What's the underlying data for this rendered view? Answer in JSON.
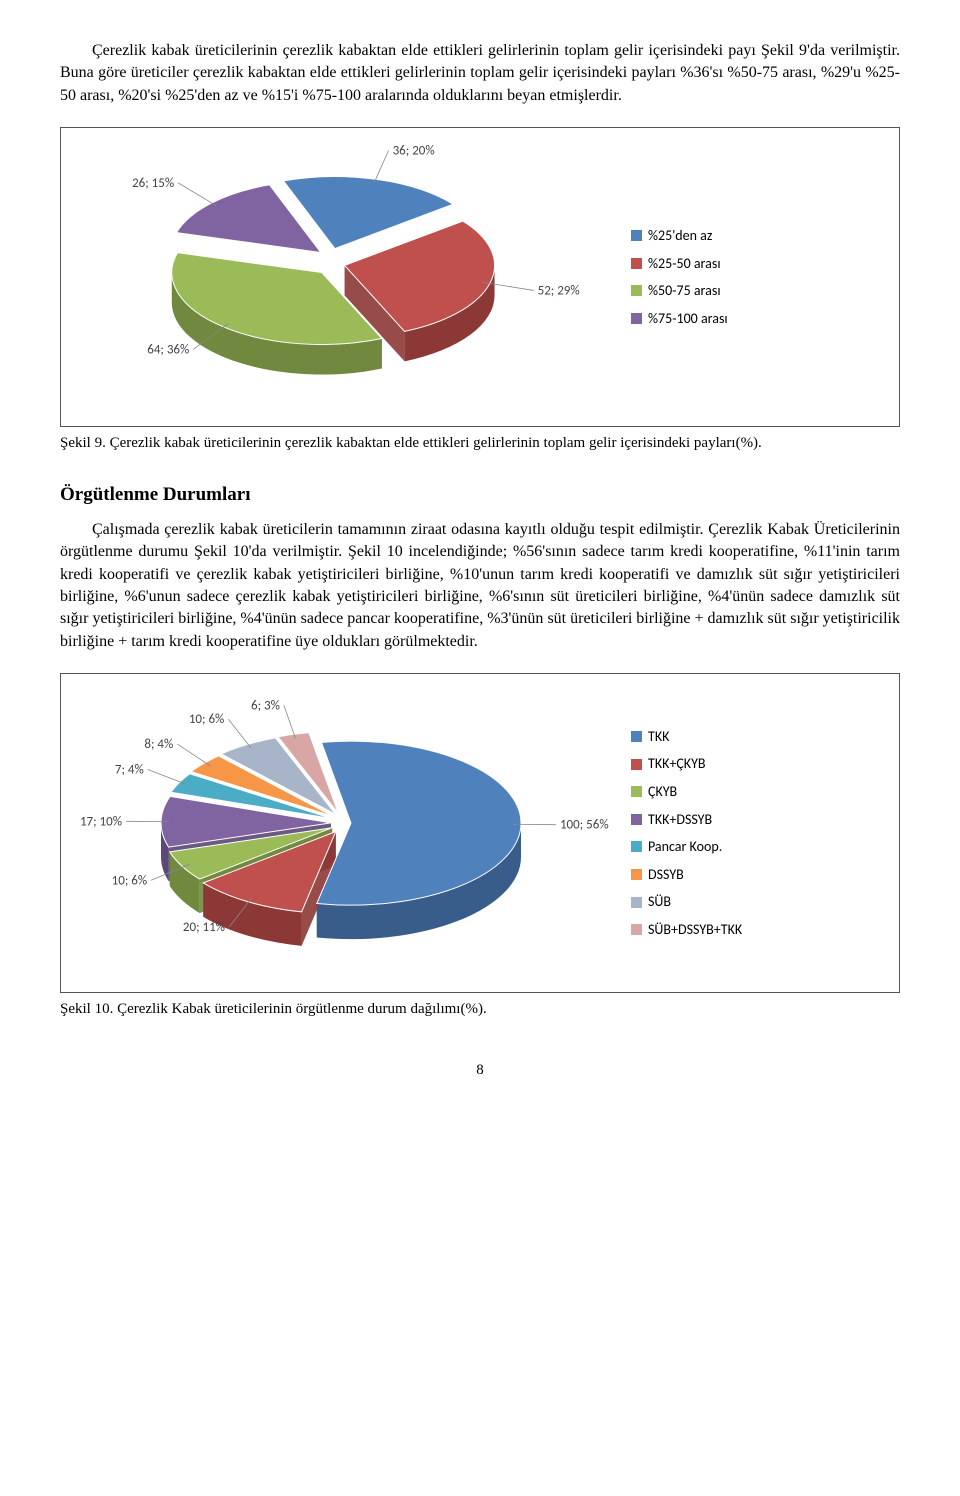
{
  "intro_para": "Çerezlik kabak üreticilerinin çerezlik kabaktan elde ettikleri gelirlerinin toplam gelir içerisindeki payı Şekil 9'da verilmiştir. Buna göre üreticiler çerezlik kabaktan elde ettikleri gelirlerinin toplam gelir içerisindeki payları %36'sı %50-75 arası, %29'u %25-50 arası, %20'si %25'den az ve %15'i %75-100 aralarında olduklarını beyan etmişlerdir.",
  "chart1": {
    "slices": [
      {
        "count": 36,
        "pct": 20,
        "label": "36; 20%",
        "legend": "%25'den az",
        "color_top": "#4f81bd",
        "color_side": "#385d8a"
      },
      {
        "count": 52,
        "pct": 29,
        "label": "52; 29%",
        "legend": "%25-50 arası",
        "color_top": "#c0504d",
        "color_side": "#8c3836"
      },
      {
        "count": 64,
        "pct": 36,
        "label": "64; 36%",
        "legend": "%50-75 arası",
        "color_top": "#9bbb59",
        "color_side": "#71893f"
      },
      {
        "count": 26,
        "pct": 15,
        "label": "26; 15%",
        "legend": "%75-100 arası",
        "color_top": "#8064a2",
        "color_side": "#5c4776"
      }
    ]
  },
  "caption1": "Şekil 9. Çerezlik kabak üreticilerinin çerezlik kabaktan elde ettikleri gelirlerinin toplam gelir içerisindeki payları(%).",
  "heading": "Örgütlenme Durumları",
  "body_para": "Çalışmada çerezlik kabak üreticilerin tamamının ziraat odasına kayıtlı olduğu tespit edilmiştir. Çerezlik Kabak Üreticilerinin örgütlenme durumu Şekil 10'da verilmiştir. Şekil 10 incelendiğinde; %56'sının sadece tarım kredi kooperatifine, %11'inin tarım kredi kooperatifi ve çerezlik kabak yetiştiricileri birliğine, %10'unun tarım kredi kooperatifi ve damızlık süt sığır yetiştiricileri birliğine, %6'unun sadece çerezlik kabak yetiştiricileri birliğine, %6'sının süt üreticileri birliğine, %4'ünün sadece damızlık süt sığır yetiştiricileri birliğine, %4'ünün sadece pancar kooperatifine, %3'ünün süt üreticileri birliğine + damızlık süt sığır yetiştiricilik birliğine + tarım kredi kooperatifine üye oldukları görülmektedir.",
  "chart2": {
    "slices": [
      {
        "count": 100,
        "pct": 56,
        "label": "100; 56%",
        "legend": "TKK",
        "color_top": "#4f81bd",
        "color_side": "#385d8a"
      },
      {
        "count": 20,
        "pct": 11,
        "label": "20; 11%",
        "legend": "TKK+ÇKYB",
        "color_top": "#c0504d",
        "color_side": "#8c3836"
      },
      {
        "count": 10,
        "pct": 6,
        "label": "10; 6%",
        "legend": "ÇKYB",
        "color_top": "#9bbb59",
        "color_side": "#71893f"
      },
      {
        "count": 17,
        "pct": 10,
        "label": "17; 10%",
        "legend": "TKK+DSSYB",
        "color_top": "#8064a2",
        "color_side": "#5c4776"
      },
      {
        "count": 7,
        "pct": 4,
        "label": "7; 4%",
        "legend": "Pancar Koop.",
        "color_top": "#4bacc6",
        "color_side": "#357d91"
      },
      {
        "count": 8,
        "pct": 4,
        "label": "8; 4%",
        "legend": "DSSYB",
        "color_top": "#f79646",
        "color_side": "#b66d31"
      },
      {
        "count": 10,
        "pct": 6,
        "label": "10; 6%",
        "legend": "SÜB",
        "color_top": "#a8b4c8",
        "color_side": "#7a8495"
      },
      {
        "count": 6,
        "pct": 3,
        "label": "6; 3%",
        "legend": "SÜB+DSSYB+TKK",
        "color_top": "#d8a7a5",
        "color_side": "#a57d7b"
      }
    ]
  },
  "caption2": "Şekil 10. Çerezlik Kabak üreticilerinin örgütlenme durum dağılımı(%).",
  "page_number": "8"
}
